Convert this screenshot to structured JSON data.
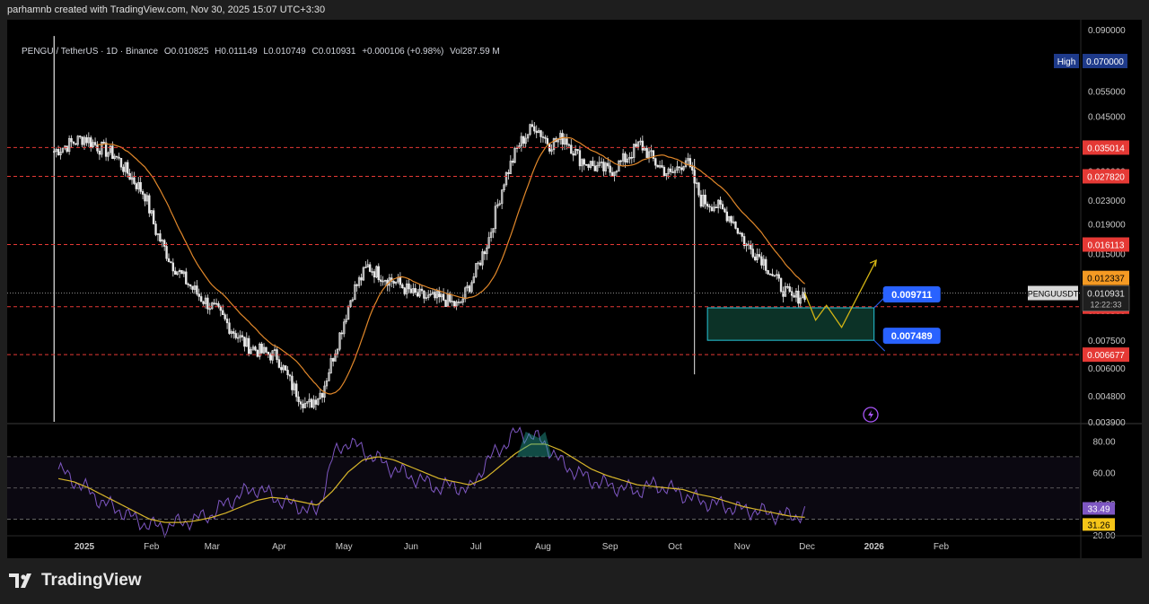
{
  "attribution": "parhamnb created with TradingView.com, Nov 30, 2025 15:07 UTC+3:30",
  "legend": {
    "symbol": "PENGU / TetherUS · 1D · Binance",
    "open": "O0.010825",
    "high": "H0.011149",
    "low": "L0.010749",
    "close": "C0.010931",
    "change": "+0.000106 (+0.98%)",
    "volume": "Vol287.59 M"
  },
  "brand": "TradingView",
  "colors": {
    "background": "#000000",
    "candle": "#e8e8e8",
    "ma": "#e0872a",
    "rsi": "#7e57c2",
    "rsi_ma": "#d8b62a",
    "level_line": "#e53935",
    "label_red": "#e53935",
    "label_blue": "#2962ff",
    "label_orange": "#f59a23",
    "box_fill": "#0e3b2e",
    "box_border": "#26c6da",
    "projection": "#d4b514"
  },
  "chart_data": [
    {
      "type": "candlestick",
      "title": "PENGU / TetherUS · 1D · Binance",
      "y_scale": "log",
      "ylim": [
        0.0039,
        0.09
      ],
      "y_ticks": [
        "0.090000",
        "0.070000",
        "0.055000",
        "0.045000",
        "0.035000",
        "0.029000",
        "0.023000",
        "0.019000",
        "0.015000",
        "0.012000",
        "0.009500",
        "0.007500",
        "0.006000",
        "0.004800",
        "0.003900"
      ],
      "x_ticks": [
        "2025",
        "Feb",
        "Mar",
        "Apr",
        "May",
        "Jun",
        "Jul",
        "Aug",
        "Sep",
        "Oct",
        "Nov",
        "Dec",
        "2026",
        "Feb"
      ],
      "approx_closes": [
        [
          "2024-12-18",
          0.034
        ],
        [
          "2024-12-25",
          0.036
        ],
        [
          "2025-01-01",
          0.038
        ],
        [
          "2025-01-08",
          0.035
        ],
        [
          "2025-01-15",
          0.033
        ],
        [
          "2025-01-22",
          0.028
        ],
        [
          "2025-01-29",
          0.024
        ],
        [
          "2025-02-03",
          0.018
        ],
        [
          "2025-02-10",
          0.014
        ],
        [
          "2025-02-17",
          0.012
        ],
        [
          "2025-02-24",
          0.0105
        ],
        [
          "2025-03-03",
          0.0095
        ],
        [
          "2025-03-10",
          0.0082
        ],
        [
          "2025-03-17",
          0.0072
        ],
        [
          "2025-03-24",
          0.0068
        ],
        [
          "2025-03-31",
          0.0066
        ],
        [
          "2025-04-07",
          0.0052
        ],
        [
          "2025-04-14",
          0.0044
        ],
        [
          "2025-04-21",
          0.005
        ],
        [
          "2025-04-28",
          0.0074
        ],
        [
          "2025-05-05",
          0.011
        ],
        [
          "2025-05-12",
          0.0135
        ],
        [
          "2025-05-19",
          0.0125
        ],
        [
          "2025-05-26",
          0.0118
        ],
        [
          "2025-06-02",
          0.0108
        ],
        [
          "2025-06-09",
          0.0105
        ],
        [
          "2025-06-16",
          0.0104
        ],
        [
          "2025-06-23",
          0.0098
        ],
        [
          "2025-06-30",
          0.0125
        ],
        [
          "2025-07-07",
          0.017
        ],
        [
          "2025-07-14",
          0.027
        ],
        [
          "2025-07-21",
          0.036
        ],
        [
          "2025-07-28",
          0.042
        ],
        [
          "2025-08-04",
          0.036
        ],
        [
          "2025-08-11",
          0.038
        ],
        [
          "2025-08-18",
          0.032
        ],
        [
          "2025-08-25",
          0.03
        ],
        [
          "2025-09-01",
          0.029
        ],
        [
          "2025-09-08",
          0.032
        ],
        [
          "2025-09-15",
          0.036
        ],
        [
          "2025-09-22",
          0.031
        ],
        [
          "2025-09-29",
          0.028
        ],
        [
          "2025-10-06",
          0.032
        ],
        [
          "2025-10-13",
          0.023
        ],
        [
          "2025-10-20",
          0.022
        ],
        [
          "2025-10-27",
          0.02
        ],
        [
          "2025-11-03",
          0.016
        ],
        [
          "2025-11-10",
          0.0145
        ],
        [
          "2025-11-17",
          0.012
        ],
        [
          "2025-11-24",
          0.0104
        ],
        [
          "2025-11-30",
          0.010931
        ]
      ],
      "moving_average": "orange line",
      "horizontal_levels": [
        0.035014,
        0.02782,
        0.016113,
        0.009796,
        0.006677
      ],
      "price_labels": [
        {
          "text": "High",
          "value": "0.070000"
        },
        {
          "text": "0.035014"
        },
        {
          "text": "0.027820"
        },
        {
          "text": "0.016113"
        },
        {
          "text": "0.012337"
        },
        {
          "text": "PENGUUSDT"
        },
        {
          "text": "0.010931"
        },
        {
          "text": "12:22:33"
        },
        {
          "text": "0.009796"
        },
        {
          "text": "0.006677"
        }
      ],
      "support_zone": {
        "top": 0.009711,
        "bottom": 0.007489,
        "top_label": "0.009711",
        "bottom_label": "0.007489"
      },
      "projection_path": [
        [
          "2025-11-30",
          0.010931
        ],
        [
          "2025-12-05",
          0.0088
        ],
        [
          "2025-12-10",
          0.0099
        ],
        [
          "2025-12-17",
          0.0083
        ],
        [
          "2026-01-02",
          0.0142
        ]
      ]
    },
    {
      "type": "line",
      "title": "RSI",
      "ylim": [
        20,
        90
      ],
      "y_ticks": [
        "80.00",
        "60.00",
        "40.00",
        "20.00"
      ],
      "bands": {
        "upper": 70,
        "middle": 50,
        "lower": 30
      },
      "series": [
        {
          "values": [
            62,
            55,
            48,
            40,
            36,
            30,
            26,
            25,
            28,
            30,
            33,
            40,
            46,
            50,
            45,
            40,
            38,
            34,
            70,
            80,
            74,
            68,
            62,
            58,
            54,
            50,
            52,
            48,
            66,
            75,
            85,
            84,
            78,
            66,
            60,
            55,
            52,
            50,
            48,
            52,
            50,
            46,
            42,
            40,
            38,
            36,
            35,
            33,
            32,
            33.49
          ]
        },
        {
          "values": [
            56,
            54,
            50,
            45,
            40,
            35,
            30,
            28,
            28,
            29,
            31,
            34,
            38,
            42,
            44,
            43,
            41,
            39,
            48,
            60,
            68,
            70,
            68,
            64,
            60,
            56,
            54,
            52,
            56,
            64,
            72,
            78,
            78,
            74,
            68,
            62,
            58,
            55,
            52,
            51,
            50,
            49,
            46,
            44,
            41,
            38,
            36,
            34,
            32,
            31.26
          ]
        }
      ],
      "value_labels": [
        "33.49",
        "31.26"
      ]
    }
  ]
}
